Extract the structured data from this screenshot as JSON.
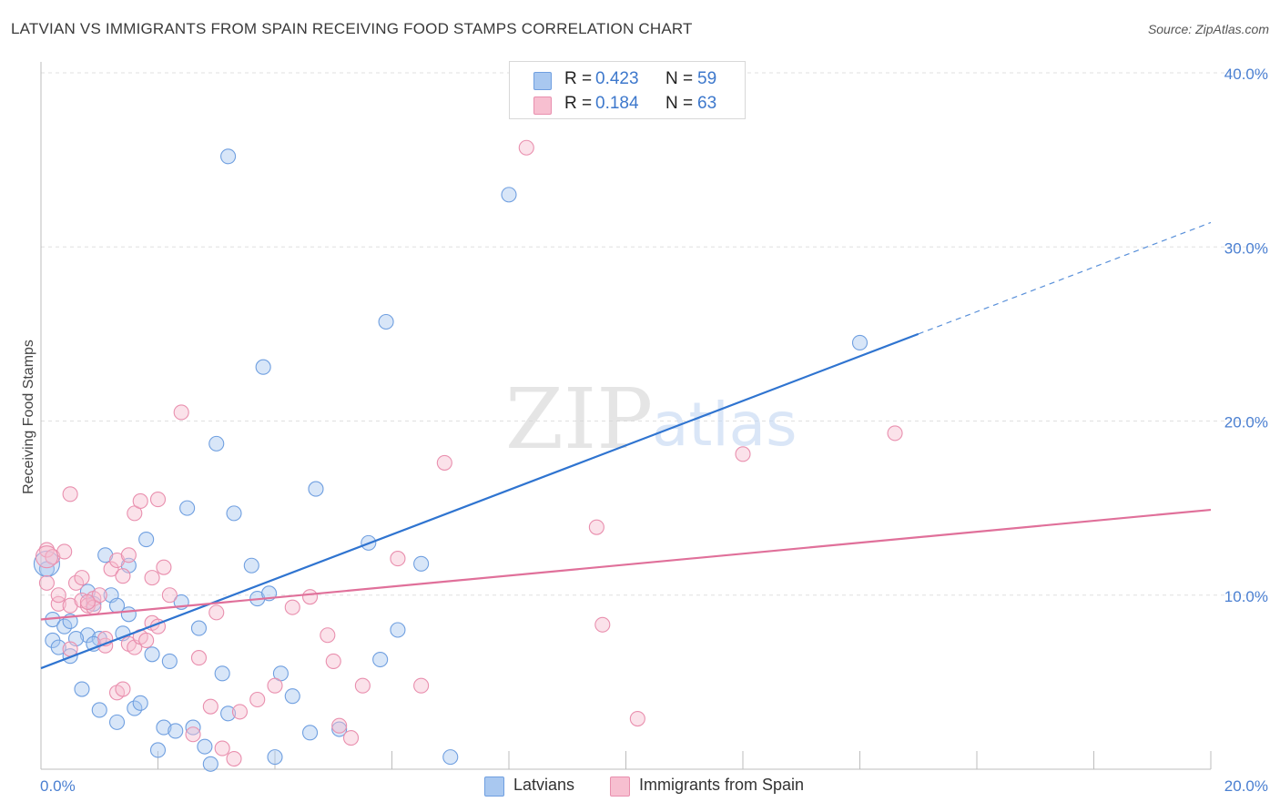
{
  "title": "LATVIAN VS IMMIGRANTS FROM SPAIN RECEIVING FOOD STAMPS CORRELATION CHART",
  "source": "Source: ZipAtlas.com",
  "watermark": {
    "zip": "ZIP",
    "atlas": "atlas"
  },
  "colors": {
    "blue_fill": "#a9c8f0",
    "blue_stroke": "#6f9fe0",
    "blue_line": "#2f74d0",
    "pink_fill": "#f7bfd0",
    "pink_stroke": "#e98fae",
    "pink_line": "#e0709a",
    "tick": "#4a7fd1",
    "grid": "#e0e0e0"
  },
  "legend": {
    "rows": [
      {
        "r_label": "R =",
        "r_value": "0.423",
        "n_label": "N =",
        "n_value": "59"
      },
      {
        "r_label": "R =",
        "r_value": "0.184",
        "n_label": "N =",
        "n_value": "63"
      }
    ]
  },
  "bottom_legend": {
    "latvians": "Latvians",
    "spain": "Immigrants from Spain"
  },
  "chart_data": {
    "type": "scatter",
    "title": "LATVIAN VS IMMIGRANTS FROM SPAIN RECEIVING FOOD STAMPS CORRELATION CHART",
    "xlabel": "",
    "ylabel": "Receiving Food Stamps",
    "xlim": [
      0,
      20
    ],
    "ylim": [
      0,
      40
    ],
    "x_tick_labels": [
      "0.0%",
      "20.0%"
    ],
    "y_tick_labels": [
      "10.0%",
      "20.0%",
      "30.0%",
      "40.0%"
    ],
    "y_ticks": [
      10,
      20,
      30,
      40
    ],
    "grid": true,
    "series": [
      {
        "name": "Latvians",
        "color": "#a9c8f0",
        "r": 0.423,
        "n": 59,
        "trend": {
          "x0": 0,
          "y0": 5.8,
          "x1": 15,
          "y1": 25.0,
          "dash_to_x": 20,
          "dash_to_y": 31.4
        },
        "points": [
          [
            0.1,
            11.5
          ],
          [
            0.2,
            8.6
          ],
          [
            0.2,
            7.4
          ],
          [
            0.3,
            7.0
          ],
          [
            0.4,
            8.2
          ],
          [
            0.5,
            8.5
          ],
          [
            0.5,
            6.5
          ],
          [
            0.7,
            4.6
          ],
          [
            0.8,
            7.7
          ],
          [
            0.8,
            10.2
          ],
          [
            0.9,
            9.5
          ],
          [
            1.0,
            3.4
          ],
          [
            1.0,
            7.5
          ],
          [
            1.1,
            12.3
          ],
          [
            1.2,
            10.0
          ],
          [
            1.3,
            2.7
          ],
          [
            1.3,
            9.4
          ],
          [
            1.4,
            7.8
          ],
          [
            1.5,
            8.9
          ],
          [
            1.6,
            3.5
          ],
          [
            1.7,
            3.8
          ],
          [
            1.8,
            13.2
          ],
          [
            1.9,
            6.6
          ],
          [
            2.0,
            1.1
          ],
          [
            2.1,
            2.4
          ],
          [
            2.2,
            6.2
          ],
          [
            2.3,
            2.2
          ],
          [
            2.4,
            9.6
          ],
          [
            2.5,
            15.0
          ],
          [
            2.6,
            2.4
          ],
          [
            2.7,
            8.1
          ],
          [
            2.8,
            1.3
          ],
          [
            2.9,
            0.3
          ],
          [
            3.0,
            18.7
          ],
          [
            3.1,
            5.5
          ],
          [
            3.2,
            3.2
          ],
          [
            3.2,
            35.2
          ],
          [
            3.3,
            14.7
          ],
          [
            3.6,
            11.7
          ],
          [
            3.7,
            9.8
          ],
          [
            3.8,
            23.1
          ],
          [
            3.9,
            10.1
          ],
          [
            4.0,
            0.7
          ],
          [
            4.1,
            5.5
          ],
          [
            4.3,
            4.2
          ],
          [
            4.6,
            2.1
          ],
          [
            4.7,
            16.1
          ],
          [
            5.1,
            2.3
          ],
          [
            5.6,
            13.0
          ],
          [
            5.8,
            6.3
          ],
          [
            5.9,
            25.7
          ],
          [
            6.1,
            8.0
          ],
          [
            6.5,
            11.8
          ],
          [
            7.0,
            0.7
          ],
          [
            8.0,
            33.0
          ],
          [
            14.0,
            24.5
          ],
          [
            0.6,
            7.5
          ],
          [
            1.5,
            11.7
          ],
          [
            0.9,
            7.2
          ]
        ]
      },
      {
        "name": "Immigrants from Spain",
        "color": "#f7bfd0",
        "r": 0.184,
        "n": 63,
        "trend": {
          "x0": 0,
          "y0": 8.6,
          "x1": 20,
          "y1": 14.9
        },
        "points": [
          [
            0.1,
            12.6
          ],
          [
            0.1,
            10.7
          ],
          [
            0.2,
            12.2
          ],
          [
            0.3,
            9.5
          ],
          [
            0.3,
            10.0
          ],
          [
            0.4,
            12.5
          ],
          [
            0.5,
            9.4
          ],
          [
            0.5,
            6.9
          ],
          [
            0.5,
            15.8
          ],
          [
            0.6,
            10.7
          ],
          [
            0.7,
            11.0
          ],
          [
            0.7,
            9.7
          ],
          [
            0.8,
            9.4
          ],
          [
            0.9,
            9.8
          ],
          [
            0.9,
            9.3
          ],
          [
            1.0,
            10.0
          ],
          [
            1.1,
            7.1
          ],
          [
            1.1,
            7.5
          ],
          [
            1.2,
            11.5
          ],
          [
            1.3,
            12.0
          ],
          [
            1.3,
            4.4
          ],
          [
            1.4,
            11.1
          ],
          [
            1.5,
            7.2
          ],
          [
            1.5,
            12.3
          ],
          [
            1.6,
            7.0
          ],
          [
            1.6,
            14.7
          ],
          [
            1.7,
            7.6
          ],
          [
            1.7,
            15.4
          ],
          [
            1.8,
            7.4
          ],
          [
            1.9,
            8.4
          ],
          [
            1.9,
            11.0
          ],
          [
            2.0,
            8.2
          ],
          [
            2.0,
            15.5
          ],
          [
            2.1,
            11.6
          ],
          [
            2.2,
            10.0
          ],
          [
            2.4,
            20.5
          ],
          [
            2.6,
            2.0
          ],
          [
            2.7,
            6.4
          ],
          [
            2.9,
            3.6
          ],
          [
            3.0,
            9.0
          ],
          [
            3.1,
            1.2
          ],
          [
            3.3,
            0.6
          ],
          [
            3.4,
            3.3
          ],
          [
            3.7,
            4.0
          ],
          [
            4.0,
            4.8
          ],
          [
            4.3,
            9.3
          ],
          [
            4.6,
            9.9
          ],
          [
            4.9,
            7.7
          ],
          [
            5.0,
            6.2
          ],
          [
            5.1,
            2.5
          ],
          [
            5.3,
            1.8
          ],
          [
            5.5,
            4.8
          ],
          [
            6.1,
            12.1
          ],
          [
            6.5,
            4.8
          ],
          [
            6.9,
            17.6
          ],
          [
            8.3,
            35.7
          ],
          [
            9.5,
            13.9
          ],
          [
            9.6,
            8.3
          ],
          [
            10.2,
            2.9
          ],
          [
            12.0,
            18.1
          ],
          [
            14.6,
            19.3
          ],
          [
            1.4,
            4.6
          ],
          [
            0.8,
            9.6
          ]
        ]
      }
    ]
  }
}
